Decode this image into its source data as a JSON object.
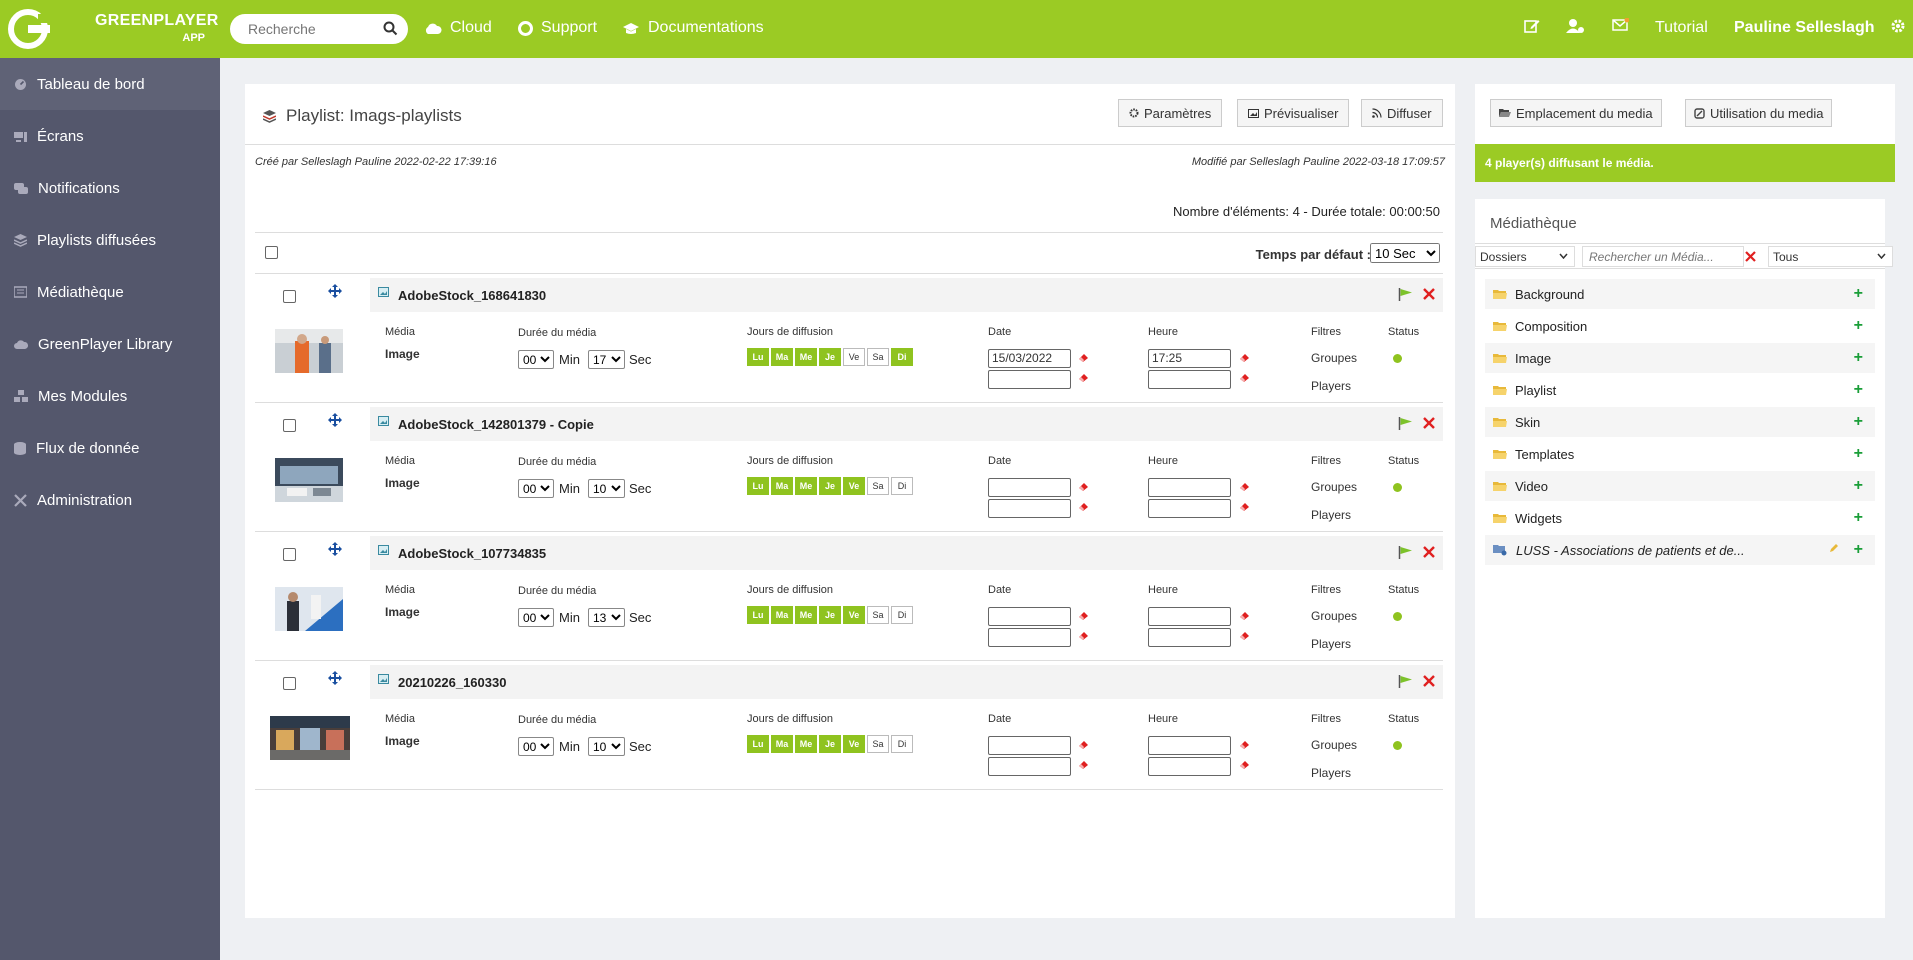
{
  "topbar": {
    "brand_line1": "GREENPLAYER",
    "brand_line2": "APP",
    "search_placeholder": "Recherche",
    "nav": [
      {
        "label": "Cloud",
        "icon": "cloud-icon"
      },
      {
        "label": "Support",
        "icon": "lifebuoy-icon"
      },
      {
        "label": "Documentations",
        "icon": "graduation-cap-icon"
      }
    ],
    "tutorial": "Tutorial",
    "username": "Pauline Selleslagh",
    "accent": "#9bcb24"
  },
  "sidebar": {
    "items": [
      {
        "label": "Tableau de bord",
        "icon": "dashboard-icon"
      },
      {
        "label": "Écrans",
        "icon": "screens-icon"
      },
      {
        "label": "Notifications",
        "icon": "notifications-icon"
      },
      {
        "label": "Playlists diffusées",
        "icon": "layers-icon"
      },
      {
        "label": "Médiathèque",
        "icon": "media-library-icon"
      },
      {
        "label": "GreenPlayer Library",
        "icon": "cloud-icon"
      },
      {
        "label": "Mes Modules",
        "icon": "modules-icon"
      },
      {
        "label": "Flux de donnée",
        "icon": "database-icon"
      },
      {
        "label": "Administration",
        "icon": "tools-icon"
      }
    ]
  },
  "playlist": {
    "title": "Playlist: Imags-playlists",
    "buttons": {
      "params": "Paramètres",
      "preview": "Prévisualiser",
      "broadcast": "Diffuser"
    },
    "created": "Créé par Selleslagh Pauline 2022-02-22 17:39:16",
    "modified": "Modifié par Selleslagh Pauline 2022-03-18 17:09:57",
    "counts": "Nombre d'éléments: 4 - Durée totale: 00:00:50",
    "default_time_label": "Temps par défaut :",
    "default_time_value": "10 Sec",
    "labels": {
      "media": "Média",
      "duration": "Durée du média",
      "days": "Jours de diffusion",
      "date": "Date",
      "time": "Heure",
      "filters": "Filtres",
      "status": "Status",
      "min": "Min",
      "sec": "Sec",
      "groups": "Groupes",
      "players": "Players"
    },
    "day_names": [
      "Lu",
      "Ma",
      "Me",
      "Je",
      "Ve",
      "Sa",
      "Di"
    ],
    "items": [
      {
        "name": "AdobeStock_168641830",
        "type": "Image",
        "min": "00",
        "sec": "17",
        "days_on": [
          true,
          true,
          true,
          true,
          false,
          false,
          true
        ],
        "date": "15/03/2022",
        "time": "17:25"
      },
      {
        "name": "AdobeStock_142801379 - Copie",
        "type": "Image",
        "min": "00",
        "sec": "10",
        "days_on": [
          true,
          true,
          true,
          true,
          true,
          false,
          false
        ],
        "date": "",
        "time": ""
      },
      {
        "name": "AdobeStock_107734835",
        "type": "Image",
        "min": "00",
        "sec": "13",
        "days_on": [
          true,
          true,
          true,
          true,
          true,
          false,
          false
        ],
        "date": "",
        "time": ""
      },
      {
        "name": "20210226_160330",
        "type": "Image",
        "min": "00",
        "sec": "10",
        "days_on": [
          true,
          true,
          true,
          true,
          true,
          false,
          false
        ],
        "date": "",
        "time": ""
      }
    ]
  },
  "right": {
    "btn_location": "Emplacement du media",
    "btn_usage": "Utilisation du media",
    "banner": "4 player(s) diffusant le média.",
    "library_title": "Médiathèque",
    "filter_folders": "Dossiers",
    "search_placeholder": "Rechercher un Média...",
    "filter_all": "Tous",
    "folders": [
      "Background",
      "Composition",
      "Image",
      "Playlist",
      "Skin",
      "Templates",
      "Video",
      "Widgets"
    ],
    "shared_folder": "LUSS - Associations de patients et de..."
  }
}
